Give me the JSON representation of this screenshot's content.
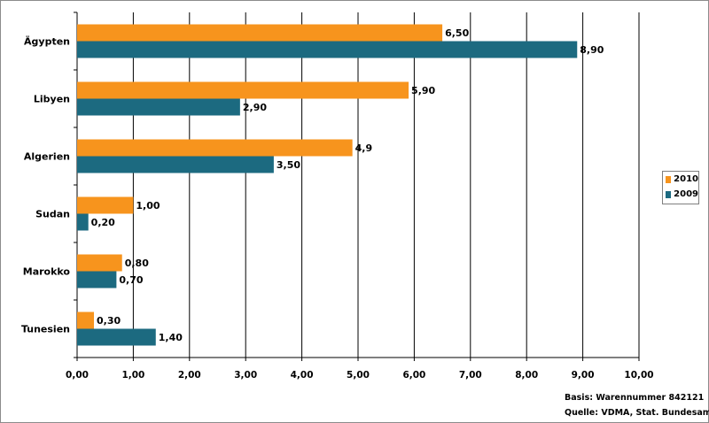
{
  "chart_data": {
    "type": "bar",
    "orientation": "horizontal",
    "categories": [
      "Ägypten",
      "Libyen",
      "Algerien",
      "Sudan",
      "Marokko",
      "Tunesien"
    ],
    "series": [
      {
        "name": "2010",
        "color": "#f7941d",
        "values": [
          6.5,
          5.9,
          4.9,
          1.0,
          0.8,
          0.3
        ],
        "labels": [
          "6,50",
          "5,90",
          "4,9",
          "1,00",
          "0,80",
          "0,30"
        ]
      },
      {
        "name": "2009",
        "color": "#1c6a80",
        "values": [
          8.9,
          2.9,
          3.5,
          0.2,
          0.7,
          1.4
        ],
        "labels": [
          "8,90",
          "2,90",
          "3,50",
          "0,20",
          "0,70",
          "1,40"
        ]
      }
    ],
    "xlim": [
      0,
      10
    ],
    "xticks": [
      0,
      1,
      2,
      3,
      4,
      5,
      6,
      7,
      8,
      9,
      10
    ],
    "xtick_labels": [
      "0,00",
      "1,00",
      "2,00",
      "3,00",
      "4,00",
      "5,00",
      "6,00",
      "7,00",
      "8,00",
      "9,00",
      "10,00"
    ],
    "grid": true,
    "legend": "right",
    "title": "",
    "xlabel": "",
    "ylabel": ""
  },
  "notes": {
    "basis": "Basis: Warennummer 842121",
    "source": "Quelle: VDMA, Stat. Bundesamt"
  }
}
